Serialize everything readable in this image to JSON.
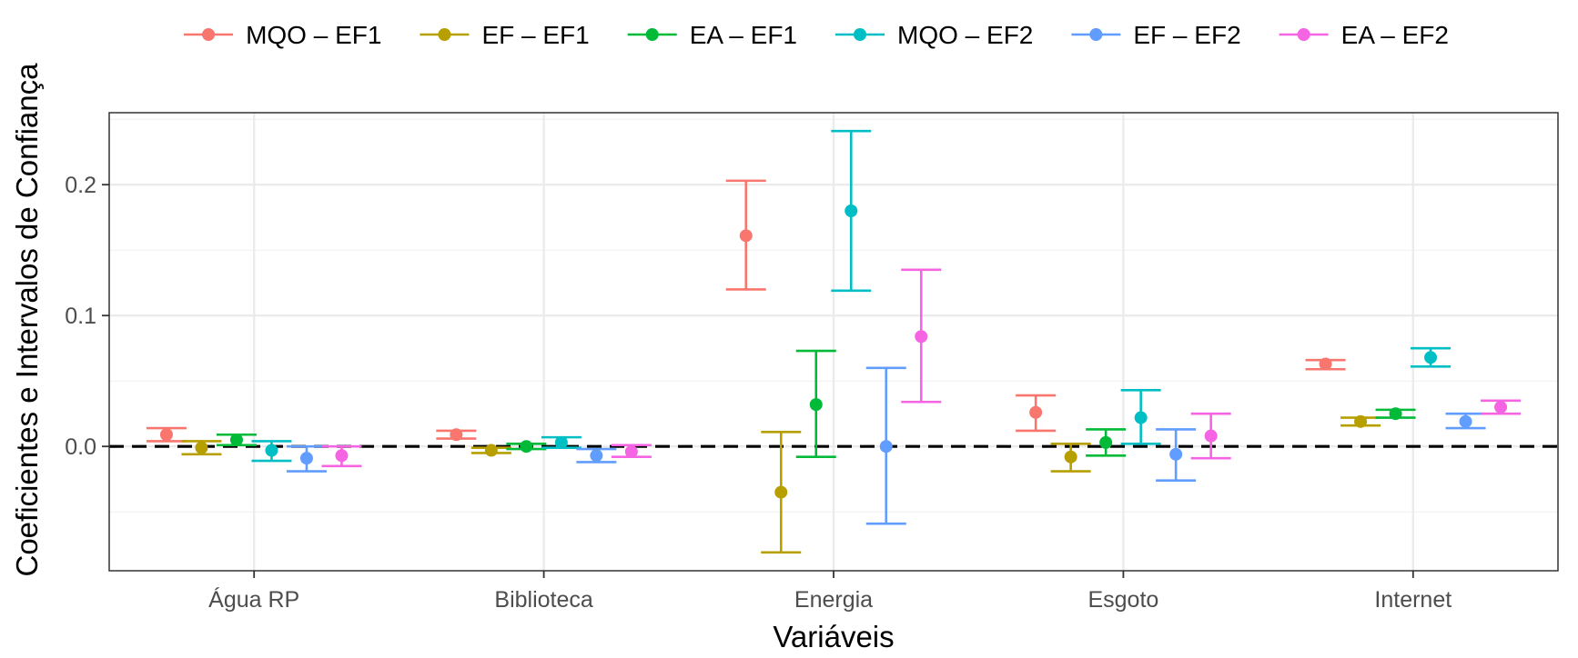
{
  "chart_data": {
    "type": "errorbar",
    "xlabel": "Variáveis",
    "ylabel": "Coeficientes e Intervalos de Confiança",
    "categories": [
      "Água RP",
      "Biblioteca",
      "Energia",
      "Esgoto",
      "Internet"
    ],
    "ylim": [
      -0.095,
      0.255
    ],
    "y_ticks": [
      {
        "value": 0.0,
        "label": "0.0"
      },
      {
        "value": 0.1,
        "label": "0.1"
      },
      {
        "value": 0.2,
        "label": "0.2"
      }
    ],
    "y_minor_ticks": [
      -0.05,
      0.05,
      0.15,
      0.25
    ],
    "grid": true,
    "reference_line": {
      "value": 0,
      "style": "dashed",
      "color": "#000000"
    },
    "legend": {
      "position": "top"
    },
    "series": [
      {
        "name": "MQO – EF1",
        "color": "#F8766D",
        "estimates": [
          0.009,
          0.009,
          0.161,
          0.026,
          0.063
        ],
        "lower": [
          0.004,
          0.006,
          0.12,
          0.012,
          0.059
        ],
        "upper": [
          0.014,
          0.012,
          0.203,
          0.039,
          0.066
        ]
      },
      {
        "name": "EF – EF1",
        "color": "#B79F00",
        "estimates": [
          -0.001,
          -0.003,
          -0.035,
          -0.008,
          0.019
        ],
        "lower": [
          -0.006,
          -0.005,
          -0.081,
          -0.019,
          0.016
        ],
        "upper": [
          0.004,
          -0.001,
          0.011,
          0.002,
          0.022
        ]
      },
      {
        "name": "EA – EF1",
        "color": "#00BA38",
        "estimates": [
          0.005,
          0.0,
          0.032,
          0.003,
          0.025
        ],
        "lower": [
          0.001,
          -0.002,
          -0.008,
          -0.007,
          0.022
        ],
        "upper": [
          0.009,
          0.002,
          0.073,
          0.013,
          0.028
        ]
      },
      {
        "name": "MQO – EF2",
        "color": "#00BFC4",
        "estimates": [
          -0.003,
          0.003,
          0.18,
          0.022,
          0.068
        ],
        "lower": [
          -0.011,
          -0.001,
          0.119,
          0.002,
          0.061
        ],
        "upper": [
          0.004,
          0.007,
          0.241,
          0.043,
          0.075
        ]
      },
      {
        "name": "EF – EF2",
        "color": "#619CFF",
        "estimates": [
          -0.009,
          -0.007,
          0.0,
          -0.006,
          0.019
        ],
        "lower": [
          -0.019,
          -0.012,
          -0.059,
          -0.026,
          0.014
        ],
        "upper": [
          0.0,
          -0.002,
          0.06,
          0.013,
          0.025
        ]
      },
      {
        "name": "EA – EF2",
        "color": "#F564E3",
        "estimates": [
          -0.007,
          -0.004,
          0.084,
          0.008,
          0.03
        ],
        "lower": [
          -0.015,
          -0.008,
          0.034,
          -0.009,
          0.025
        ],
        "upper": [
          0.0,
          0.001,
          0.135,
          0.025,
          0.035
        ]
      }
    ]
  }
}
